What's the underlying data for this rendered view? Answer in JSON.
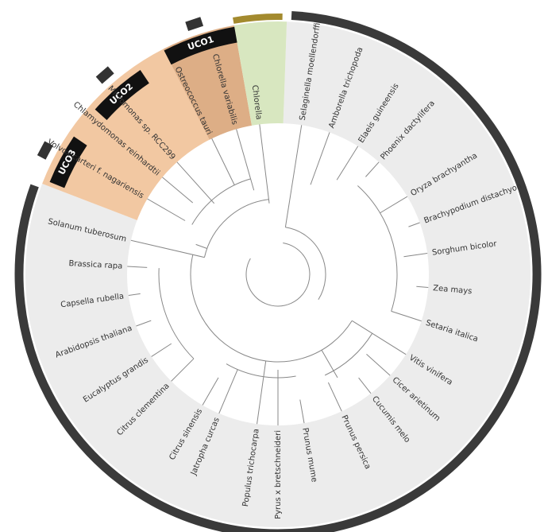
{
  "clades": [
    {
      "label": "UCO1"
    },
    {
      "label": "UCO2"
    },
    {
      "label": "UCO3"
    }
  ],
  "leaves": [
    {
      "label": "Selaginella moellendorffii"
    },
    {
      "label": "Amborella trichopoda"
    },
    {
      "label": "Elaeis guineensis"
    },
    {
      "label": "Phoenix dactylifera"
    },
    {
      "label": "Oryza brachyantha"
    },
    {
      "label": "Brachypodium distachyon"
    },
    {
      "label": "Sorghum bicolor"
    },
    {
      "label": "Zea mays"
    },
    {
      "label": "Setaria italica"
    },
    {
      "label": "Vitis vinifera"
    },
    {
      "label": "Cicer arietinum"
    },
    {
      "label": "Cucumis melo"
    },
    {
      "label": "Prunus persica"
    },
    {
      "label": "Prunus mume"
    },
    {
      "label": "Pyrus x bretschneideri"
    },
    {
      "label": "Populus trichocarpa"
    },
    {
      "label": "Jatropha curcas"
    },
    {
      "label": "Citrus sinensis"
    },
    {
      "label": "Citrus clementina"
    },
    {
      "label": "Eucalyptus grandis"
    },
    {
      "label": "Arabidopsis thaliana"
    },
    {
      "label": "Capsella rubella"
    },
    {
      "label": "Brassica rapa"
    },
    {
      "label": "Solanum tuberosum"
    },
    {
      "label": "Volvox carteri f. nagariensis"
    },
    {
      "label": "Chlamydomonas reinhardtii"
    },
    {
      "label": "Micromonas sp. RCC299"
    },
    {
      "label": "Ostreococcus tauri"
    },
    {
      "label": "Chlorella variabilis"
    },
    {
      "label": "Chlorella"
    }
  ]
}
